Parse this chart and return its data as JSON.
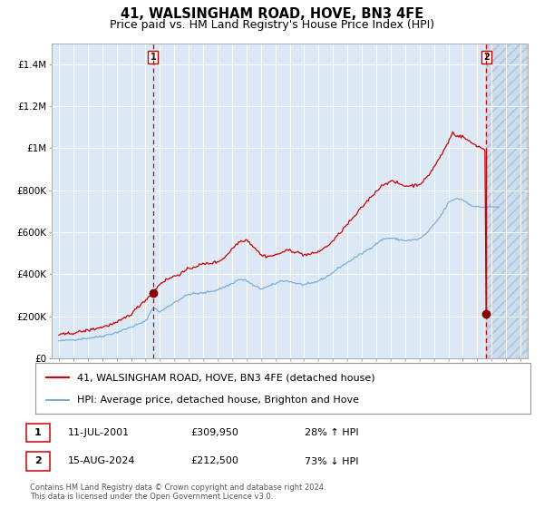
{
  "title": "41, WALSINGHAM ROAD, HOVE, BN3 4FE",
  "subtitle": "Price paid vs. HM Land Registry's House Price Index (HPI)",
  "background_color": "#dce9f5",
  "hpi_color": "#7ab0d4",
  "price_color": "#cc0000",
  "vline_color": "#cc0000",
  "marker_color": "#8b0000",
  "ylim": [
    0,
    1500000
  ],
  "yticks": [
    0,
    200000,
    400000,
    600000,
    800000,
    1000000,
    1200000,
    1400000
  ],
  "ytick_labels": [
    "£0",
    "£200K",
    "£400K",
    "£600K",
    "£800K",
    "£1M",
    "£1.2M",
    "£1.4M"
  ],
  "year_start": 1995,
  "year_end": 2027,
  "sale1_year": 2001.53,
  "sale1_price": 309950,
  "sale1_label": "1",
  "sale2_year": 2024.62,
  "sale2_price": 212500,
  "sale2_label": "2",
  "legend_line1": "41, WALSINGHAM ROAD, HOVE, BN3 4FE (detached house)",
  "legend_line2": "HPI: Average price, detached house, Brighton and Hove",
  "table_row1": [
    "1",
    "11-JUL-2001",
    "£309,950",
    "28% ↑ HPI"
  ],
  "table_row2": [
    "2",
    "15-AUG-2024",
    "£212,500",
    "73% ↓ HPI"
  ],
  "footnote1": "Contains HM Land Registry data © Crown copyright and database right 2024.",
  "footnote2": "This data is licensed under the Open Government Licence v3.0.",
  "title_fontsize": 10.5,
  "subtitle_fontsize": 9,
  "axis_fontsize": 7.5,
  "legend_fontsize": 8,
  "table_fontsize": 8,
  "footnote_fontsize": 6
}
